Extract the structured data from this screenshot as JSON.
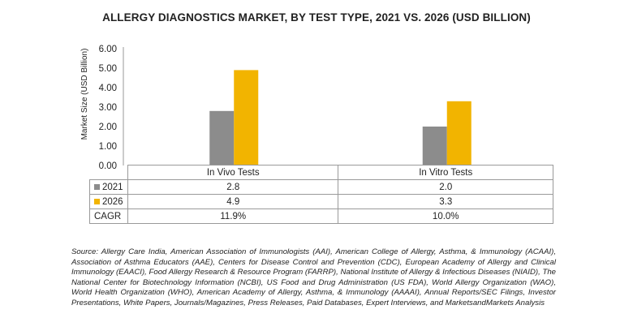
{
  "chart_data": {
    "type": "bar",
    "title": "ALLERGY DIAGNOSTICS MARKET, BY TEST TYPE, 2021 VS. 2026 (USD BILLION)",
    "ylabel": "Market Size (USD Billion)",
    "xlabel": "",
    "categories": [
      "In Vivo Tests",
      "In Vitro Tests"
    ],
    "series": [
      {
        "name": "2021",
        "values": [
          2.8,
          2.0
        ],
        "labels": [
          "2.8",
          "2.0"
        ],
        "color": "#8c8c8c"
      },
      {
        "name": "2026",
        "values": [
          4.9,
          3.3
        ],
        "labels": [
          "4.9",
          "3.3"
        ],
        "color": "#f2b400"
      }
    ],
    "cagr": {
      "label": "CAGR",
      "values": [
        "11.9%",
        "10.0%"
      ]
    },
    "ylim": [
      0,
      6
    ],
    "yticks": [
      "0.00",
      "1.00",
      "2.00",
      "3.00",
      "4.00",
      "5.00",
      "6.00"
    ],
    "grid": false,
    "legend": "table-left"
  },
  "source": "Source: Allergy Care India, American Association of Immunologists (AAI), American College of Allergy, Asthma, & Immunology (ACAAI), Association of Asthma Educators (AAE), Centers for Disease Control and Prevention (CDC), European Academy of Allergy and Clinical Immunology (EAACI), Food Allergy Research & Resource Program (FARRP), National Institute of Allergy & Infectious Diseases (NIAID), The National Center for Biotechnology Information (NCBI), US Food and Drug Administration (US FDA), World Allergy Organization (WAO), World Health Organization (WHO), American Academy of Allergy, Asthma, & Immunology (AAAAI), Annual Reports/SEC Filings, Investor Presentations, White Papers, Journals/Magazines, Press Releases, Paid Databases, Expert Interviews, and MarketsandMarkets Analysis"
}
